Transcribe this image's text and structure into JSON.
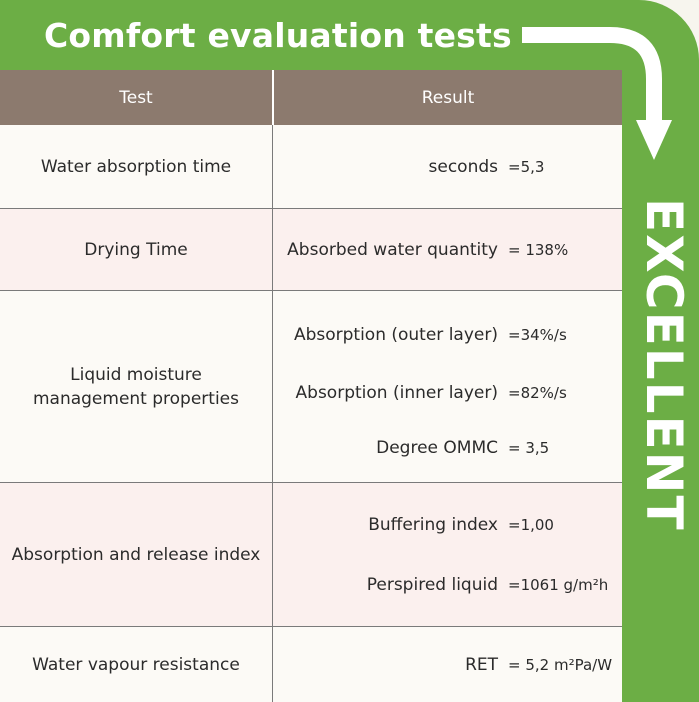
{
  "title": "Comfort evaluation tests",
  "rating": "EXCELLENT",
  "colors": {
    "accent": "#6cae45",
    "header": "#8c7a6e",
    "pink_row": "#fbf0ee",
    "cream_row": "#fcfaf6"
  },
  "table": {
    "headers": [
      "Test",
      "Result"
    ],
    "rows": [
      {
        "test": "Water absorption time",
        "results": [
          {
            "label": "seconds",
            "value": "=5,3"
          }
        ]
      },
      {
        "test": "Drying Time",
        "results": [
          {
            "label": "Absorbed water quantity",
            "value": "= 138%"
          }
        ]
      },
      {
        "test": "Liquid moisture\nmanagement properties",
        "results": [
          {
            "label": "Absorption (outer layer)",
            "value": "=34%/s"
          },
          {
            "label": "Absorption (inner layer)",
            "value": "=82%/s"
          },
          {
            "label": "Degree OMMC",
            "value": "= 3,5"
          }
        ]
      },
      {
        "test": "Absorption and release index",
        "results": [
          {
            "label": "Buffering index",
            "value": "=1,00"
          },
          {
            "label": "Perspired liquid",
            "value": "=1061 g/m²h"
          }
        ]
      },
      {
        "test": "Water vapour resistance",
        "results": [
          {
            "label": "RET",
            "value": "= 5,2 m²Pa/W"
          }
        ]
      }
    ]
  }
}
